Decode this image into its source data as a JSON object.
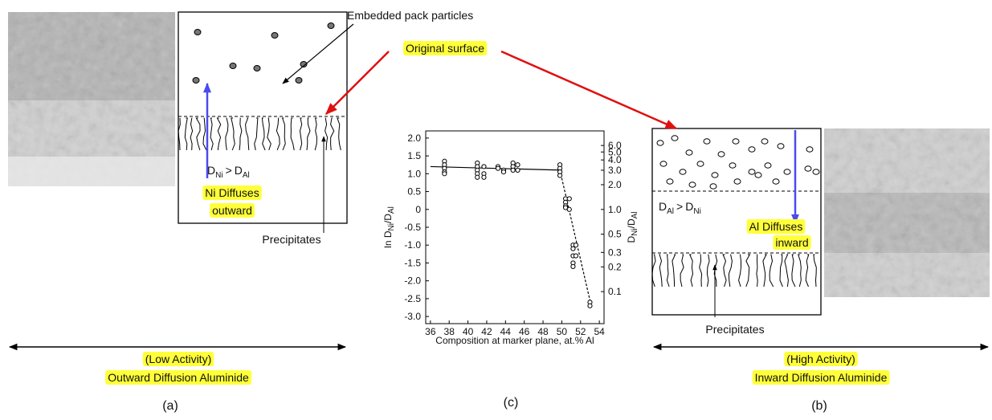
{
  "panel_a": {
    "pointer_label": "Embedded pack particles",
    "relation": {
      "left": "D",
      "left_sub": "Ni",
      "op": ">",
      "right": "D",
      "right_sub": "Al"
    },
    "diffusion_lines": [
      "Ni Diffuses",
      "outward"
    ],
    "precipitates": "Precipitates",
    "activity": "(Low Activity)",
    "process": "Outward Diffusion Aluminide",
    "letter": "(a)"
  },
  "surface_label": "Original surface",
  "panel_b": {
    "relation": {
      "left": "D",
      "left_sub": "Al",
      "op": ">",
      "right": "D",
      "right_sub": "Ni"
    },
    "diffusion_lines": [
      "Al Diffuses",
      "inward"
    ],
    "precipitates": "Precipitates",
    "activity": "(High Activity)",
    "process": "Inward Diffusion Aluminide",
    "letter": "(b)"
  },
  "chart": {
    "type": "scatter",
    "letter": "(c)",
    "x_label": "Composition at marker plane, at.% Al",
    "y_label": {
      "prefix": "ln D",
      "sub1": "Ni",
      "mid": "/D",
      "sub2": "Al"
    },
    "y2_label": {
      "prefix": "D",
      "sub1": "Ni",
      "mid": "/D",
      "sub2": "Al"
    },
    "xlim": [
      35.5,
      54.5
    ],
    "xticks": [
      36,
      38,
      40,
      42,
      44,
      46,
      48,
      50,
      52,
      54
    ],
    "ylim": [
      -3.2,
      2.2
    ],
    "yticks": [
      {
        "value": 2,
        "label": "2.0"
      },
      {
        "value": 1.5,
        "label": "1.5"
      },
      {
        "value": 1,
        "label": "1.0"
      },
      {
        "value": 0.5,
        "label": "0.5"
      },
      0,
      {
        "value": -0.5,
        "label": "-0.5"
      },
      {
        "value": -1,
        "label": "-1.0"
      },
      {
        "value": -1.5,
        "label": "-1.5"
      },
      {
        "value": -2,
        "label": "-2.0"
      },
      {
        "value": -2.5,
        "label": "-2.5"
      },
      {
        "value": -3,
        "label": "-3.0"
      }
    ],
    "y2lim": [
      0.0408,
      9.025
    ],
    "y2_log": true,
    "y2ticks": [
      {
        "value": 6,
        "label": "6.0"
      },
      {
        "value": 5,
        "label": "5.0"
      },
      {
        "value": 4,
        "label": "4.0"
      },
      {
        "value": 3,
        "label": "3.0"
      },
      {
        "value": 2,
        "label": "2.0"
      },
      {
        "value": 1,
        "label": "1.0"
      },
      0.5,
      0.3,
      0.2,
      0.1
    ],
    "x": [
      37.5,
      37.5,
      37.5,
      37.5,
      37.5,
      41,
      41,
      41,
      41,
      41,
      41.7,
      41.7,
      41.7,
      43.2,
      43.2,
      43.8,
      43.8,
      44.8,
      44.8,
      44.8,
      45.3,
      45.3,
      49.8,
      49.8,
      49.8,
      49.8,
      50.4,
      50.4,
      50.4,
      50.4,
      50.8,
      50.8,
      51.2,
      51.2,
      51.2,
      51.2,
      51.2,
      51.5,
      51.5,
      53,
      53
    ],
    "y": [
      1.35,
      1.25,
      1.15,
      1.05,
      1.0,
      1.3,
      1.2,
      1.1,
      1.0,
      0.9,
      1.2,
      1.0,
      0.9,
      1.2,
      1.15,
      1.1,
      1.05,
      1.3,
      1.2,
      1.1,
      1.25,
      1.1,
      1.25,
      1.15,
      1.05,
      0.95,
      0.3,
      0.2,
      0.1,
      0.05,
      0.3,
      0.0,
      -1.0,
      -1.1,
      -1.3,
      -1.5,
      -1.6,
      -1.0,
      -1.3,
      -2.6,
      -2.7
    ],
    "fit_lines": [
      {
        "x": [
          36,
          50
        ],
        "y": [
          1.2,
          1.1
        ],
        "style": "solid"
      },
      {
        "x": [
          49.8,
          53
        ],
        "y": [
          1.1,
          -2.55
        ],
        "style": "dashed"
      }
    ]
  }
}
